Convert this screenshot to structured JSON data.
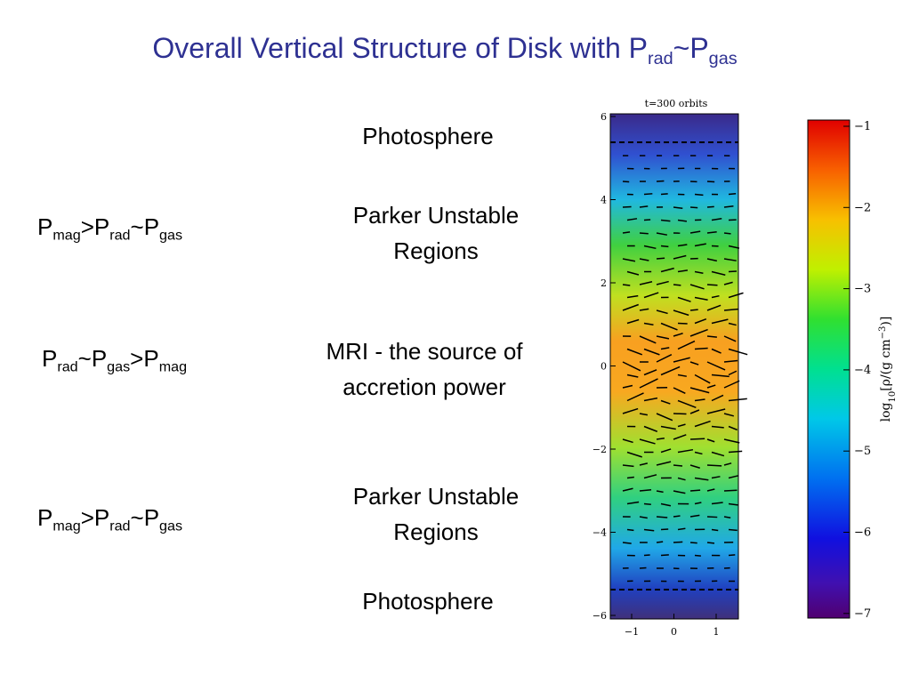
{
  "title": [
    {
      "t": "Overall Vertical Structure of Disk with P"
    },
    {
      "sub": "rad"
    },
    {
      "t": "~P"
    },
    {
      "sub": "gas"
    }
  ],
  "labels": {
    "photosphere_top": "Photosphere",
    "parker_top": [
      "Parker Unstable",
      "Regions"
    ],
    "mri": [
      "MRI - the source of",
      "accretion power"
    ],
    "parker_bottom": [
      "Parker Unstable",
      "Regions"
    ],
    "photosphere_bottom": "Photosphere"
  },
  "regimes": {
    "top": [
      {
        "t": "P"
      },
      {
        "sub": "mag"
      },
      {
        "t": ">P"
      },
      {
        "sub": "rad"
      },
      {
        "t": "~P"
      },
      {
        "sub": "gas"
      }
    ],
    "middle": [
      {
        "t": "P"
      },
      {
        "sub": "rad"
      },
      {
        "t": "~P"
      },
      {
        "sub": "gas"
      },
      {
        "t": ">P"
      },
      {
        "sub": "mag"
      }
    ],
    "bottom": [
      {
        "t": "P"
      },
      {
        "sub": "mag"
      },
      {
        "t": ">P"
      },
      {
        "sub": "rad"
      },
      {
        "t": "~P"
      },
      {
        "sub": "gas"
      }
    ]
  },
  "figure": {
    "title": "t=300 orbits",
    "y_ticks": [
      "6",
      "4",
      "2",
      "0",
      "−2",
      "−4",
      "−6"
    ],
    "x_ticks": [
      "−1",
      "0",
      "1"
    ],
    "colorbar_ticks": [
      "−1",
      "−2",
      "−3",
      "−4",
      "−5",
      "−6",
      "−7"
    ],
    "colorbar_label": [
      {
        "t": "log"
      },
      {
        "sub": "10"
      },
      {
        "t": "[ρ/(g cm"
      },
      {
        "sup": "−3"
      },
      {
        "t": ")]"
      }
    ]
  }
}
